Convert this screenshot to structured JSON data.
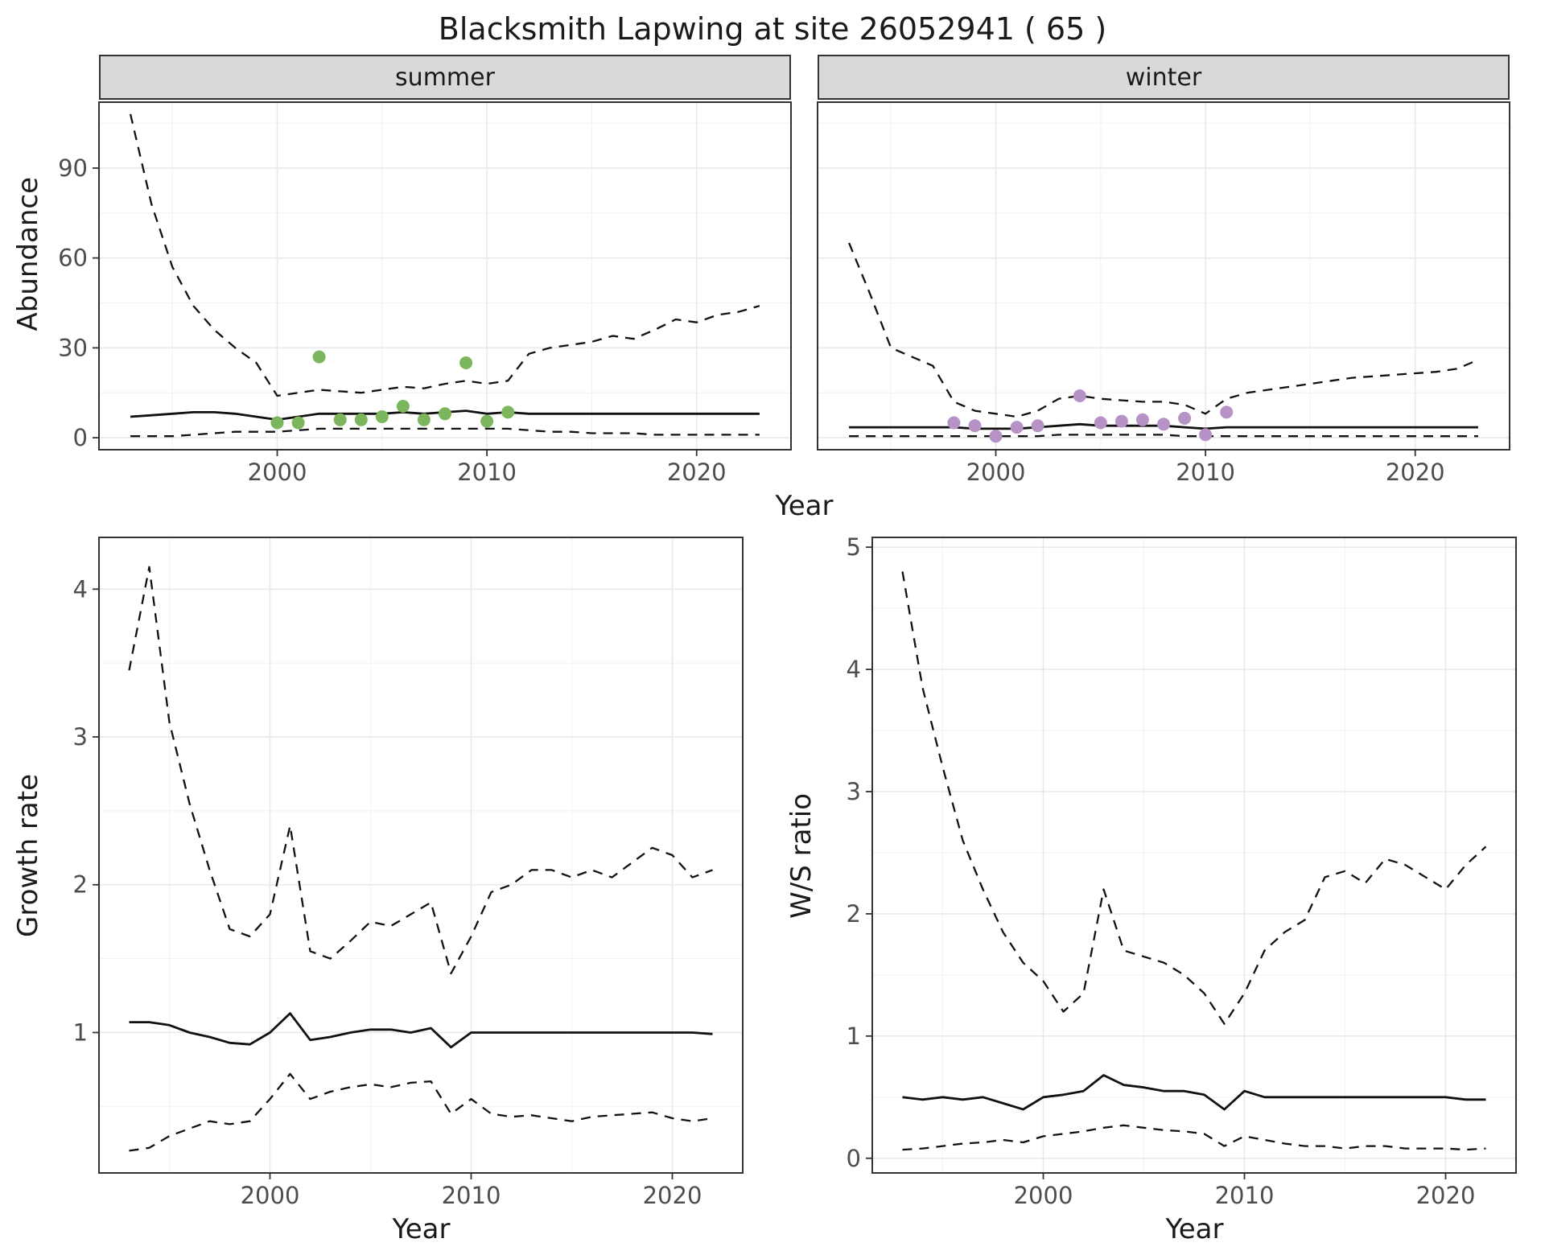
{
  "title": "Blacksmith Lapwing at site 26052941 ( 65 )",
  "figures": {
    "abundance": {
      "ylabel": "Abundance",
      "xlabel": "Year",
      "facets": [
        "summer",
        "winter"
      ]
    },
    "growth": {
      "ylabel": "Growth rate",
      "xlabel": "Year"
    },
    "ws": {
      "ylabel": "W/S ratio",
      "xlabel": "Year"
    }
  },
  "colors": {
    "line": "#111111",
    "summer_points": "#7cb65c",
    "winter_points": "#b792c6",
    "strip_fill": "#d9d9d9",
    "panel_bg": "#ffffff",
    "panel_border": "#333333",
    "grid_major": "#e9e9e9",
    "grid_minor": "#f3f3f3",
    "tick_text": "#4d4d4d"
  },
  "chart_data": [
    {
      "id": "abundance_summer",
      "type": "line",
      "facet": "summer",
      "xlabel": "Year",
      "ylabel": "Abundance",
      "xlim": [
        1991.5,
        2024.5
      ],
      "ylim": [
        -4,
        112
      ],
      "xticks": [
        2000,
        2010,
        2020
      ],
      "yticks": [
        0,
        30,
        60,
        90
      ],
      "xminor": [
        1995,
        2005,
        2015
      ],
      "yminor": [
        15,
        45,
        75,
        105
      ],
      "x": [
        1993,
        1994,
        1995,
        1996,
        1997,
        1998,
        1999,
        2000,
        2001,
        2002,
        2003,
        2004,
        2005,
        2006,
        2007,
        2008,
        2009,
        2010,
        2011,
        2012,
        2013,
        2014,
        2015,
        2016,
        2017,
        2018,
        2019,
        2020,
        2021,
        2022,
        2023
      ],
      "series": [
        {
          "name": "upper_95ci",
          "style": "dashed",
          "values": [
            108,
            78,
            57,
            44,
            36,
            30,
            25,
            14,
            15,
            16,
            15.5,
            15,
            16,
            17,
            16.5,
            18,
            19,
            18,
            19,
            28,
            30,
            31,
            32,
            34,
            33,
            36,
            39.5,
            38.5,
            41,
            42,
            44
          ]
        },
        {
          "name": "median",
          "style": "solid",
          "values": [
            7,
            7.5,
            8,
            8.5,
            8.5,
            8,
            7,
            6,
            7,
            8,
            8,
            8,
            8,
            8.5,
            8,
            8.5,
            9,
            8,
            8.5,
            8,
            8,
            8,
            8,
            8,
            8,
            8,
            8,
            8,
            8,
            8,
            8
          ]
        },
        {
          "name": "lower_95ci",
          "style": "dashed",
          "values": [
            0.5,
            0.5,
            0.5,
            1,
            1.5,
            2,
            2,
            2,
            2.5,
            3,
            3,
            3,
            3,
            3,
            3,
            3,
            3,
            3,
            3,
            2.5,
            2,
            2,
            1.5,
            1.5,
            1.5,
            1,
            1,
            1,
            1,
            1,
            1
          ]
        }
      ],
      "points": {
        "name": "observed_counts_summer",
        "color": "#7cb65c",
        "x": [
          2000,
          2001,
          2002,
          2003,
          2004,
          2005,
          2006,
          2007,
          2008,
          2009,
          2010,
          2011
        ],
        "y": [
          5,
          5,
          27,
          6,
          6,
          7,
          10.5,
          6,
          8,
          25,
          5.5,
          8.5
        ]
      }
    },
    {
      "id": "abundance_winter",
      "type": "line",
      "facet": "winter",
      "xlabel": "Year",
      "ylabel": "Abundance",
      "xlim": [
        1991.5,
        2024.5
      ],
      "ylim": [
        -4,
        112
      ],
      "xticks": [
        2000,
        2010,
        2020
      ],
      "yticks": [
        0,
        30,
        60,
        90
      ],
      "xminor": [
        1995,
        2005,
        2015
      ],
      "yminor": [
        15,
        45,
        75,
        105
      ],
      "x": [
        1993,
        1994,
        1995,
        1996,
        1997,
        1998,
        1999,
        2000,
        2001,
        2002,
        2003,
        2004,
        2005,
        2006,
        2007,
        2008,
        2009,
        2010,
        2011,
        2012,
        2013,
        2014,
        2015,
        2016,
        2017,
        2018,
        2019,
        2020,
        2021,
        2022,
        2023
      ],
      "series": [
        {
          "name": "upper_95ci",
          "style": "dashed",
          "values": [
            65,
            48,
            30,
            27,
            24,
            12,
            9,
            8,
            7,
            9,
            13,
            14,
            13,
            12.5,
            12,
            12,
            11,
            8,
            13,
            15,
            16,
            17,
            18,
            19,
            20,
            20.5,
            21,
            21.5,
            22,
            23,
            26
          ]
        },
        {
          "name": "median",
          "style": "solid",
          "values": [
            3.5,
            3.5,
            3.5,
            3.5,
            3.5,
            3.5,
            3,
            3,
            3,
            3.5,
            4,
            4.5,
            4,
            4,
            4,
            4,
            3.5,
            3,
            3.5,
            3.5,
            3.5,
            3.5,
            3.5,
            3.5,
            3.5,
            3.5,
            3.5,
            3.5,
            3.5,
            3.5,
            3.5
          ]
        },
        {
          "name": "lower_95ci",
          "style": "dashed",
          "values": [
            0.5,
            0.5,
            0.5,
            0.5,
            0.5,
            0.5,
            0.5,
            0.5,
            0.5,
            0.5,
            1,
            1,
            1,
            1,
            1,
            1,
            0.5,
            0.5,
            0.5,
            0.5,
            0.5,
            0.5,
            0.5,
            0.5,
            0.5,
            0.5,
            0.5,
            0.5,
            0.5,
            0.5,
            0.5
          ]
        }
      ],
      "points": {
        "name": "observed_counts_winter",
        "color": "#b792c6",
        "x": [
          1998,
          1999,
          2000,
          2001,
          2002,
          2004,
          2005,
          2006,
          2007,
          2008,
          2009,
          2010,
          2011
        ],
        "y": [
          5,
          4,
          0.5,
          3.5,
          4,
          14,
          5,
          5.5,
          6,
          4.5,
          6.5,
          1,
          8.5
        ]
      }
    },
    {
      "id": "growth_rate",
      "type": "line",
      "xlabel": "Year",
      "ylabel": "Growth rate",
      "xlim": [
        1991.5,
        2023.5
      ],
      "ylim": [
        0.05,
        4.35
      ],
      "xticks": [
        2000,
        2010,
        2020
      ],
      "yticks": [
        1,
        2,
        3,
        4
      ],
      "xminor": [
        1995,
        2005,
        2015
      ],
      "yminor": [
        0.5,
        1.5,
        2.5,
        3.5
      ],
      "x": [
        1993,
        1994,
        1995,
        1996,
        1997,
        1998,
        1999,
        2000,
        2001,
        2002,
        2003,
        2004,
        2005,
        2006,
        2007,
        2008,
        2009,
        2010,
        2011,
        2012,
        2013,
        2014,
        2015,
        2016,
        2017,
        2018,
        2019,
        2020,
        2021,
        2022
      ],
      "series": [
        {
          "name": "upper_95ci",
          "style": "dashed",
          "values": [
            3.45,
            4.15,
            3.1,
            2.55,
            2.1,
            1.7,
            1.65,
            1.8,
            2.4,
            1.55,
            1.5,
            1.62,
            1.75,
            1.72,
            1.8,
            1.88,
            1.4,
            1.65,
            1.95,
            2.0,
            2.1,
            2.1,
            2.05,
            2.1,
            2.05,
            2.15,
            2.25,
            2.2,
            2.05,
            2.1
          ]
        },
        {
          "name": "median",
          "style": "solid",
          "values": [
            1.07,
            1.07,
            1.05,
            1.0,
            0.97,
            0.93,
            0.92,
            1.0,
            1.13,
            0.95,
            0.97,
            1.0,
            1.02,
            1.02,
            1.0,
            1.03,
            0.9,
            1.0,
            1.0,
            1.0,
            1.0,
            1.0,
            1.0,
            1.0,
            1.0,
            1.0,
            1.0,
            1.0,
            1.0,
            0.99
          ]
        },
        {
          "name": "lower_95ci",
          "style": "dashed",
          "values": [
            0.2,
            0.22,
            0.3,
            0.35,
            0.4,
            0.38,
            0.4,
            0.55,
            0.72,
            0.55,
            0.6,
            0.63,
            0.65,
            0.63,
            0.66,
            0.67,
            0.45,
            0.55,
            0.45,
            0.43,
            0.44,
            0.42,
            0.4,
            0.43,
            0.44,
            0.45,
            0.46,
            0.42,
            0.4,
            0.42
          ]
        }
      ]
    },
    {
      "id": "ws_ratio",
      "type": "line",
      "xlabel": "Year",
      "ylabel": "W/S ratio",
      "xlim": [
        1991.5,
        2023.5
      ],
      "ylim": [
        -0.12,
        5.08
      ],
      "xticks": [
        2000,
        2010,
        2020
      ],
      "yticks": [
        0,
        1,
        2,
        3,
        4,
        5
      ],
      "xminor": [
        1995,
        2005,
        2015
      ],
      "yminor": [
        0.5,
        1.5,
        2.5,
        3.5,
        4.5
      ],
      "x": [
        1993,
        1994,
        1995,
        1996,
        1997,
        1998,
        1999,
        2000,
        2001,
        2002,
        2003,
        2004,
        2005,
        2006,
        2007,
        2008,
        2009,
        2010,
        2011,
        2012,
        2013,
        2014,
        2015,
        2016,
        2017,
        2018,
        2019,
        2020,
        2021,
        2022
      ],
      "series": [
        {
          "name": "upper_95ci",
          "style": "dashed",
          "values": [
            4.8,
            3.85,
            3.2,
            2.6,
            2.2,
            1.85,
            1.6,
            1.45,
            1.2,
            1.35,
            2.2,
            1.7,
            1.65,
            1.6,
            1.5,
            1.35,
            1.1,
            1.35,
            1.7,
            1.85,
            1.95,
            2.3,
            2.35,
            2.25,
            2.45,
            2.4,
            2.3,
            2.2,
            2.4,
            2.55
          ]
        },
        {
          "name": "median",
          "style": "solid",
          "values": [
            0.5,
            0.48,
            0.5,
            0.48,
            0.5,
            0.45,
            0.4,
            0.5,
            0.52,
            0.55,
            0.68,
            0.6,
            0.58,
            0.55,
            0.55,
            0.52,
            0.4,
            0.55,
            0.5,
            0.5,
            0.5,
            0.5,
            0.5,
            0.5,
            0.5,
            0.5,
            0.5,
            0.5,
            0.48,
            0.48
          ]
        },
        {
          "name": "lower_95ci",
          "style": "dashed",
          "values": [
            0.07,
            0.08,
            0.1,
            0.12,
            0.13,
            0.15,
            0.13,
            0.18,
            0.2,
            0.22,
            0.25,
            0.27,
            0.25,
            0.23,
            0.22,
            0.2,
            0.1,
            0.18,
            0.15,
            0.12,
            0.1,
            0.1,
            0.08,
            0.1,
            0.1,
            0.08,
            0.08,
            0.08,
            0.07,
            0.08
          ]
        }
      ]
    }
  ]
}
